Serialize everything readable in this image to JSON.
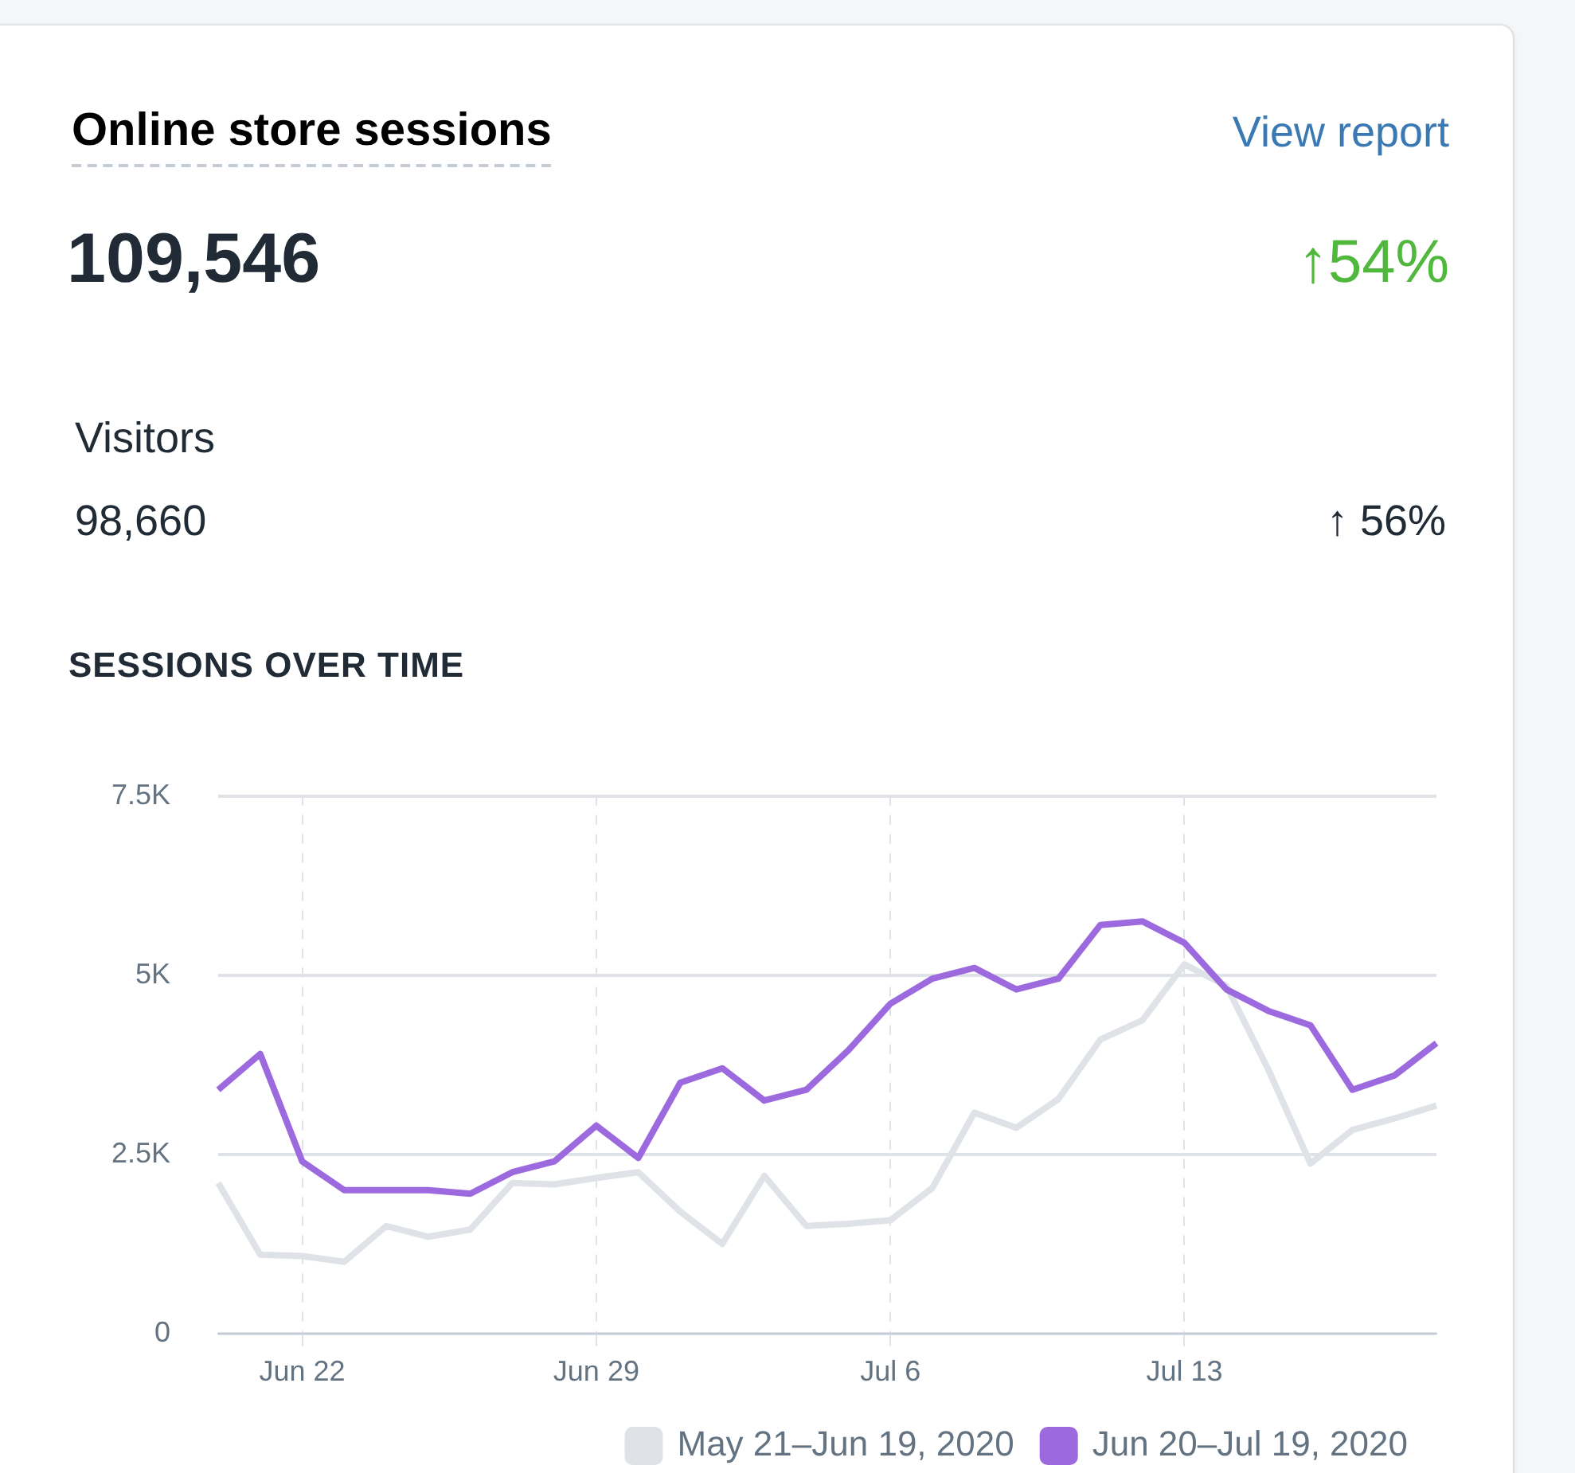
{
  "chart_data": {
    "type": "line",
    "title": "Online store sessions",
    "subtitle": "SESSIONS OVER TIME",
    "annotations": [
      "View report",
      "109,546",
      "↑54%",
      "Visitors",
      "98,660",
      "↑ 56%"
    ],
    "categories": [
      null,
      null,
      "Jun 22",
      null,
      null,
      null,
      null,
      null,
      null,
      "Jun 29",
      null,
      null,
      null,
      null,
      null,
      null,
      "Jul 6",
      null,
      null,
      null,
      null,
      null,
      null,
      "Jul 13",
      null,
      null,
      null,
      null,
      null,
      null
    ],
    "series": [
      {
        "name": "May 21–Jun 19, 2020",
        "color": "#dfe3e8",
        "values": [
          2100,
          1100,
          1080,
          1000,
          1500,
          1350,
          1450,
          2100,
          2080,
          2170,
          2250,
          1700,
          1250,
          2200,
          1500,
          1530,
          1580,
          2030,
          3080,
          2870,
          3270,
          4100,
          4370,
          5150,
          4850,
          3680,
          2370,
          2840,
          3000,
          3180
        ]
      },
      {
        "name": "Jun 20–Jul 19, 2020",
        "color": "#9c6ade",
        "values": [
          3400,
          3900,
          2400,
          2000,
          2000,
          2000,
          1950,
          2250,
          2400,
          2900,
          2450,
          3500,
          3700,
          3250,
          3400,
          3950,
          4600,
          4950,
          5100,
          4800,
          4950,
          5700,
          5750,
          5450,
          4800,
          4500,
          4300,
          3400,
          3600,
          4050
        ]
      }
    ],
    "ylim": [
      0,
      7500
    ],
    "yticks": [
      {
        "value": 0,
        "label": "0"
      },
      {
        "value": 2500,
        "label": "2.5K"
      },
      {
        "value": 5000,
        "label": "5K"
      },
      {
        "value": 7500,
        "label": "7.5K"
      }
    ],
    "grid": true,
    "legend": "bottom"
  }
}
